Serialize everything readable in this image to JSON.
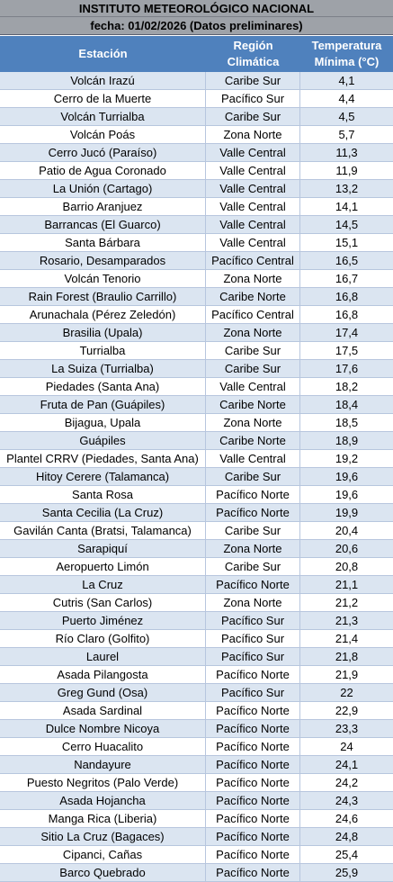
{
  "title": "INSTITUTO METEOROLÓGICO NACIONAL",
  "subtitle": "fecha: 01/02/2026 (Datos preliminares)",
  "table": {
    "headers": {
      "estacion": "Estación",
      "region_line1": "Región",
      "region_line2": "Climática",
      "temp_line1": "Temperatura",
      "temp_line2": "Mínima (°C)"
    },
    "rows": [
      {
        "estacion": "Volcán Irazú",
        "region": "Caribe Sur",
        "temp": "4,1"
      },
      {
        "estacion": "Cerro de la Muerte",
        "region": "Pacífico Sur",
        "temp": "4,4"
      },
      {
        "estacion": "Volcán Turrialba",
        "region": "Caribe Sur",
        "temp": "4,5"
      },
      {
        "estacion": "Volcán Poás",
        "region": "Zona Norte",
        "temp": "5,7"
      },
      {
        "estacion": "Cerro Jucó (Paraíso)",
        "region": "Valle Central",
        "temp": "11,3"
      },
      {
        "estacion": "Patio de Agua Coronado",
        "region": "Valle Central",
        "temp": "11,9"
      },
      {
        "estacion": "La Unión (Cartago)",
        "region": "Valle Central",
        "temp": "13,2"
      },
      {
        "estacion": "Barrio Aranjuez",
        "region": "Valle Central",
        "temp": "14,1"
      },
      {
        "estacion": "Barrancas (El Guarco)",
        "region": "Valle Central",
        "temp": "14,5"
      },
      {
        "estacion": "Santa Bárbara",
        "region": "Valle Central",
        "temp": "15,1"
      },
      {
        "estacion": "Rosario, Desamparados",
        "region": "Pacífico Central",
        "temp": "16,5"
      },
      {
        "estacion": "Volcán Tenorio",
        "region": "Zona Norte",
        "temp": "16,7"
      },
      {
        "estacion": "Rain Forest (Braulio Carrillo)",
        "region": "Caribe Norte",
        "temp": "16,8"
      },
      {
        "estacion": "Arunachala (Pérez Zeledón)",
        "region": "Pacífico Central",
        "temp": "16,8"
      },
      {
        "estacion": "Brasilia (Upala)",
        "region": "Zona Norte",
        "temp": "17,4"
      },
      {
        "estacion": "Turrialba",
        "region": "Caribe Sur",
        "temp": "17,5"
      },
      {
        "estacion": "La Suiza (Turrialba)",
        "region": "Caribe Sur",
        "temp": "17,6"
      },
      {
        "estacion": "Piedades (Santa Ana)",
        "region": "Valle Central",
        "temp": "18,2"
      },
      {
        "estacion": "Fruta de Pan (Guápiles)",
        "region": "Caribe Norte",
        "temp": "18,4"
      },
      {
        "estacion": "Bijagua, Upala",
        "region": "Zona Norte",
        "temp": "18,5"
      },
      {
        "estacion": "Guápiles",
        "region": "Caribe Norte",
        "temp": "18,9"
      },
      {
        "estacion": "Plantel CRRV (Piedades, Santa Ana)",
        "region": "Valle Central",
        "temp": "19,2"
      },
      {
        "estacion": "Hitoy Cerere (Talamanca)",
        "region": "Caribe Sur",
        "temp": "19,6"
      },
      {
        "estacion": "Santa Rosa",
        "region": "Pacífico Norte",
        "temp": "19,6"
      },
      {
        "estacion": "Santa Cecilia (La Cruz)",
        "region": "Pacífico Norte",
        "temp": "19,9"
      },
      {
        "estacion": "Gavilán Canta (Bratsi, Talamanca)",
        "region": "Caribe Sur",
        "temp": "20,4"
      },
      {
        "estacion": "Sarapiquí",
        "region": "Zona Norte",
        "temp": "20,6"
      },
      {
        "estacion": "Aeropuerto Limón",
        "region": "Caribe Sur",
        "temp": "20,8"
      },
      {
        "estacion": "La Cruz",
        "region": "Pacífico Norte",
        "temp": "21,1"
      },
      {
        "estacion": "Cutris (San Carlos)",
        "region": "Zona Norte",
        "temp": "21,2"
      },
      {
        "estacion": "Puerto Jiménez",
        "region": "Pacífico Sur",
        "temp": "21,3"
      },
      {
        "estacion": "Río Claro (Golfito)",
        "region": "Pacífico Sur",
        "temp": "21,4"
      },
      {
        "estacion": "Laurel",
        "region": "Pacífico Sur",
        "temp": "21,8"
      },
      {
        "estacion": "Asada Pilangosta",
        "region": "Pacífico Norte",
        "temp": "21,9"
      },
      {
        "estacion": "Greg Gund (Osa)",
        "region": "Pacífico Sur",
        "temp": "22"
      },
      {
        "estacion": "Asada Sardinal",
        "region": "Pacífico Norte",
        "temp": "22,9"
      },
      {
        "estacion": "Dulce Nombre Nicoya",
        "region": "Pacífico Norte",
        "temp": "23,3"
      },
      {
        "estacion": "Cerro Huacalito",
        "region": "Pacífico Norte",
        "temp": "24"
      },
      {
        "estacion": "Nandayure",
        "region": "Pacífico Norte",
        "temp": "24,1"
      },
      {
        "estacion": "Puesto Negritos (Palo Verde)",
        "region": "Pacífico Norte",
        "temp": "24,2"
      },
      {
        "estacion": "Asada Hojancha",
        "region": "Pacífico Norte",
        "temp": "24,3"
      },
      {
        "estacion": "Manga Rica (Liberia)",
        "region": "Pacífico Norte",
        "temp": "24,6"
      },
      {
        "estacion": "Sitio La Cruz (Bagaces)",
        "region": "Pacífico Norte",
        "temp": "24,8"
      },
      {
        "estacion": "Cipanci, Cañas",
        "region": "Pacífico Norte",
        "temp": "25,4"
      },
      {
        "estacion": "Barco Quebrado",
        "region": "Pacífico Norte",
        "temp": "25,9"
      }
    ]
  },
  "colors": {
    "title_bg": "#9ea2a8",
    "header_bg": "#4f81bd",
    "band_row": "#dbe5f1",
    "plain_row": "#ffffff"
  }
}
